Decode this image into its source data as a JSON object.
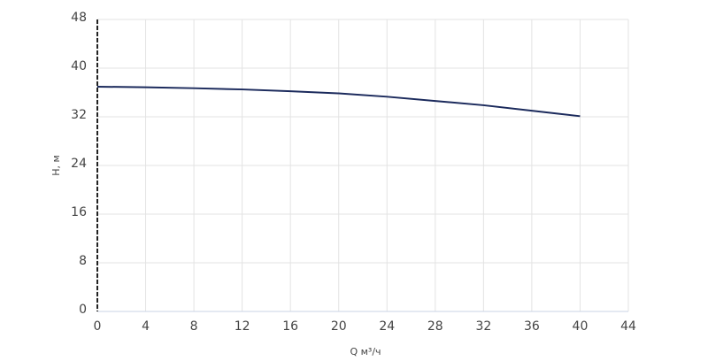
{
  "chart_data": {
    "type": "line",
    "x_label": "Q м³/ч",
    "y_label": "H, м",
    "x": [
      0,
      4,
      8,
      12,
      16,
      20,
      24,
      28,
      32,
      36,
      40
    ],
    "series": [
      {
        "name": "H",
        "color": "#1b2a5c",
        "values": [
          36.95,
          36.85,
          36.7,
          36.5,
          36.2,
          35.85,
          35.3,
          34.6,
          33.9,
          33.0,
          32.1
        ]
      }
    ],
    "xlim": [
      0,
      44
    ],
    "xticks": [
      0,
      4,
      8,
      12,
      16,
      20,
      24,
      28,
      32,
      36,
      40,
      44
    ],
    "ylim": [
      0,
      48
    ],
    "yticks": [
      0,
      8,
      16,
      24,
      32,
      40,
      48
    ],
    "grid": true
  }
}
